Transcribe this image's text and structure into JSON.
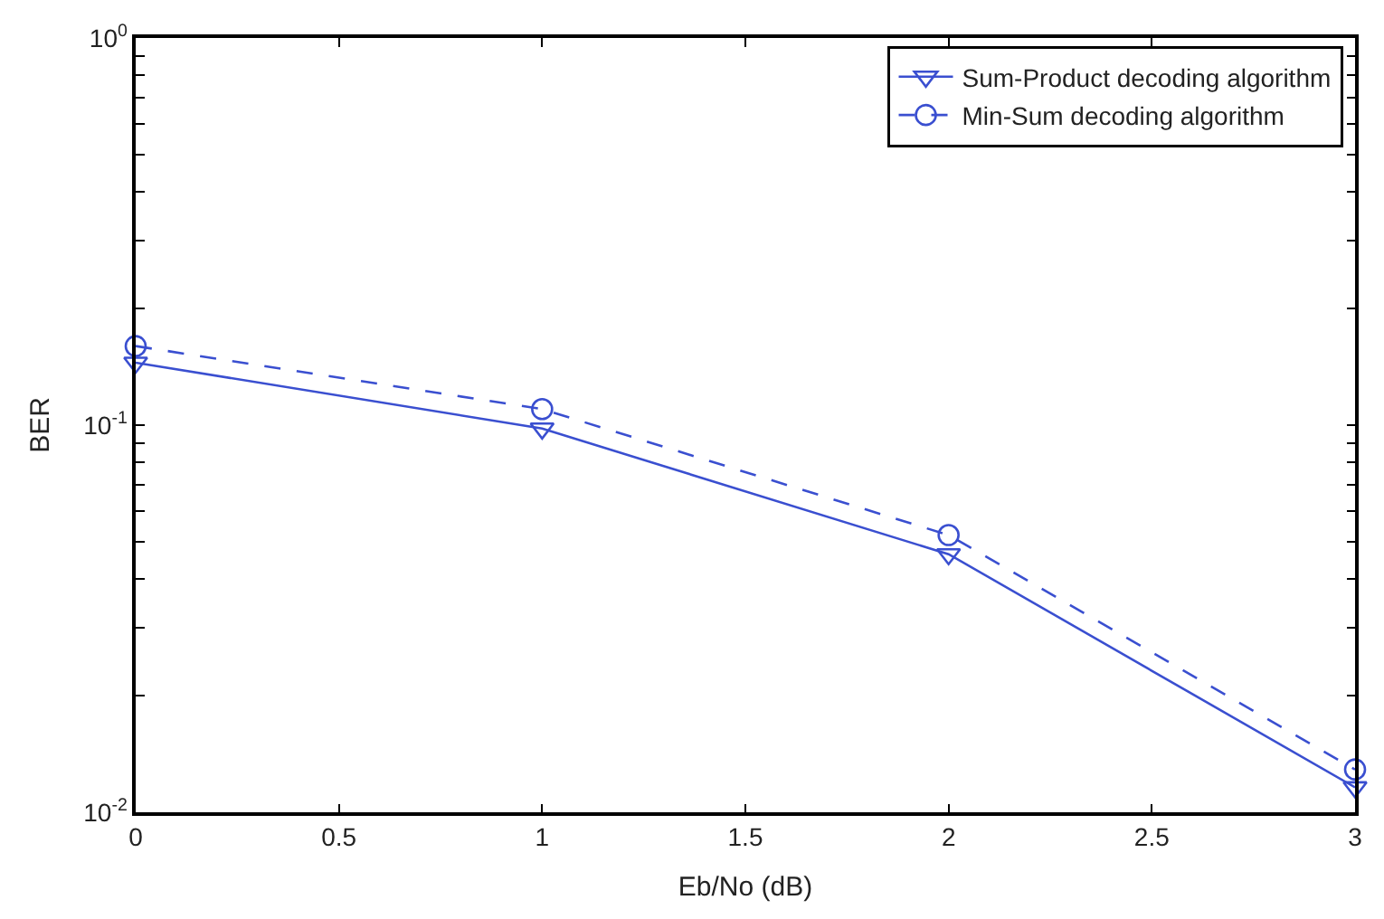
{
  "chart_data": {
    "type": "line",
    "xlabel": "Eb/No (dB)",
    "ylabel": "BER",
    "x": [
      0,
      1,
      2,
      3
    ],
    "series": [
      {
        "name": "Sum-Product decoding algorithm",
        "color": "#3a4fd0",
        "values": [
          0.145,
          0.098,
          0.0464,
          0.0116
        ],
        "marker": "triangle",
        "line_style": "solid"
      },
      {
        "name": "Min-Sum decoding algorithm",
        "color": "#3a4fd0",
        "values": [
          0.16,
          0.11,
          0.052,
          0.0129
        ],
        "marker": "circle",
        "line_style": "dashed"
      }
    ],
    "log": "y",
    "xlim": [
      0,
      3
    ],
    "ylim": [
      0.01,
      1
    ],
    "xticks": [
      0,
      0.5,
      1,
      1.5,
      2,
      2.5,
      3
    ],
    "yticks": [
      {
        "value": 0.01,
        "label": "10$^{-2}$"
      },
      {
        "value": 0.02,
        "label": null
      },
      {
        "value": 0.03,
        "label": null
      },
      {
        "value": 0.04,
        "label": null
      },
      {
        "value": 0.05,
        "label": null
      },
      {
        "value": 0.06,
        "label": null
      },
      {
        "value": 0.07,
        "label": null
      },
      {
        "value": 0.08,
        "label": null
      },
      {
        "value": 0.09,
        "label": null
      },
      {
        "value": 0.1,
        "label": "10$^{-1}$"
      },
      {
        "value": 0.2,
        "label": null
      },
      {
        "value": 0.3,
        "label": null
      },
      {
        "value": 0.4,
        "label": null
      },
      {
        "value": 0.5,
        "label": null
      },
      {
        "value": 0.6,
        "label": null
      },
      {
        "value": 0.7,
        "label": null
      },
      {
        "value": 0.8,
        "label": null
      },
      {
        "value": 0.9,
        "label": null
      },
      {
        "value": 1,
        "label": "10$^{0}$"
      }
    ],
    "legend": "top right"
  }
}
